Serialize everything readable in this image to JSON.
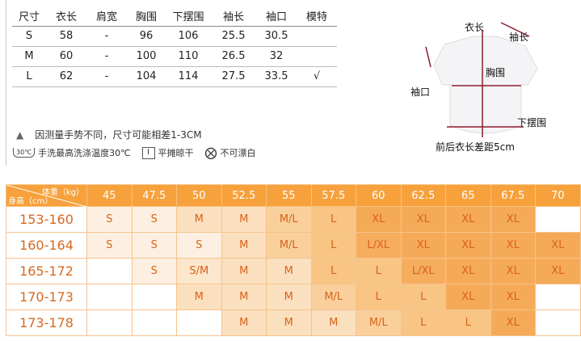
{
  "measure": {
    "headers": [
      "尺寸",
      "衣长",
      "肩宽",
      "胸围",
      "下摆围",
      "袖长",
      "袖口",
      "模特"
    ],
    "rows": [
      [
        "S",
        "58",
        "-",
        "96",
        "106",
        "25.5",
        "30.5",
        ""
      ],
      [
        "M",
        "60",
        "-",
        "100",
        "110",
        "26.5",
        "32",
        ""
      ],
      [
        "L",
        "62",
        "-",
        "104",
        "114",
        "27.5",
        "33.5",
        "√"
      ]
    ]
  },
  "notes": {
    "warning_icon": "triangle-icon",
    "warning": "因测量手势不同，尺寸可能相差1-3CM",
    "care": [
      {
        "icon": "wash-30-icon",
        "icon_text": "30℃",
        "label": "手洗最高洗涤温度30℃"
      },
      {
        "icon": "dry-flat-icon",
        "icon_text": "I",
        "label": "平摊晾干"
      },
      {
        "icon": "no-bleach-icon",
        "label": "不可漂白"
      }
    ]
  },
  "diagram": {
    "length": "衣长",
    "sleeve_length": "袖长",
    "chest": "胸围",
    "cuff": "袖口",
    "hem": "下摆围",
    "note": "前后衣长差距5cm"
  },
  "fit": {
    "weight_label": "体重（kg）",
    "height_label": "身高（cm）",
    "weights": [
      "45",
      "47.5",
      "50",
      "52.5",
      "55",
      "57.5",
      "60",
      "62.5",
      "65",
      "67.5",
      "70"
    ],
    "rows": [
      {
        "height": "153-160",
        "sizes": [
          "S",
          "S",
          "M",
          "M",
          "M/L",
          "L",
          "XL",
          "XL",
          "XL",
          "XL",
          ""
        ]
      },
      {
        "height": "160-164",
        "sizes": [
          "S",
          "S",
          "S",
          "M",
          "M/L",
          "L",
          "L/XL",
          "XL",
          "XL",
          "XL",
          "XL"
        ]
      },
      {
        "height": "165-172",
        "sizes": [
          "",
          "S",
          "S/M",
          "M",
          "M",
          "L",
          "L",
          "L/XL",
          "XL",
          "XL",
          "XL"
        ]
      },
      {
        "height": "170-173",
        "sizes": [
          "",
          "",
          "M",
          "M",
          "M",
          "M/L",
          "L",
          "L",
          "XL",
          "XL",
          ""
        ]
      },
      {
        "height": "173-178",
        "sizes": [
          "",
          "",
          "",
          "M",
          "M",
          "M",
          "M/L",
          "L",
          "L",
          "XL",
          ""
        ]
      }
    ],
    "colors": {
      "header": "#f7a13c",
      "text": "#d9621a"
    }
  }
}
